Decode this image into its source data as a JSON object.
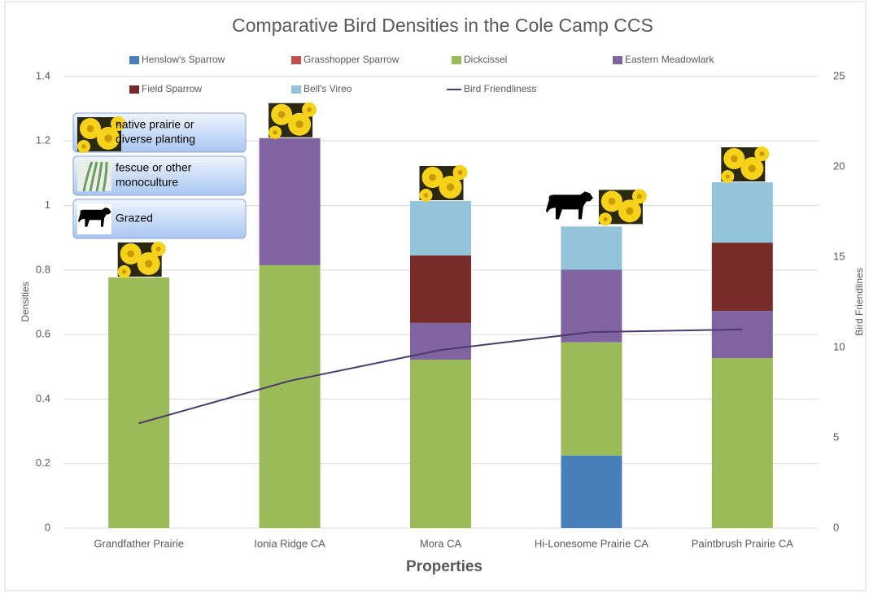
{
  "chart_data": {
    "type": "stacked-bar-line",
    "title": "Comparative Bird Densities in the Cole Camp CCS",
    "x_label": "Properties",
    "y_label": "Densities",
    "y2_label": "Bird Friendlines",
    "categories": [
      "Grandfather Prairie",
      "Ionia Ridge CA",
      "Mora CA",
      "Hi-Lonesome Prairie CA",
      "Paintbrush Prairie CA"
    ],
    "series": [
      {
        "name": "Henslow's Sparrow",
        "color": "#4a7ebb",
        "values": [
          0,
          0,
          0,
          0.225,
          0
        ]
      },
      {
        "name": "Grasshopper Sparrow",
        "color": "#c0504d",
        "values": [
          0,
          0,
          0,
          0,
          0
        ]
      },
      {
        "name": "Dickcissel",
        "color": "#9bbb59",
        "values": [
          0.777,
          0.815,
          0.522,
          0.351,
          0.527
        ]
      },
      {
        "name": "Eastern Meadowlark",
        "color": "#8064a2",
        "values": [
          0,
          0.394,
          0.114,
          0.225,
          0.146
        ]
      },
      {
        "name": "Field Sparrow",
        "color": "#772c2a",
        "values": [
          0,
          0,
          0.209,
          0,
          0.212
        ]
      },
      {
        "name": "Bell's Vireo",
        "color": "#93c4d9",
        "values": [
          0,
          0,
          0.169,
          0.134,
          0.187
        ]
      },
      {
        "name": "Bird Friendliness",
        "color": "#4b3a6b",
        "type": "line",
        "axis": "y2",
        "values": [
          5.8,
          8.15,
          9.86,
          10.85,
          11.0
        ]
      }
    ],
    "ylim": [
      0,
      1.4
    ],
    "yticks": [
      0,
      0.2,
      0.4,
      0.6,
      0.8,
      1,
      1.2,
      1.4
    ],
    "y2lim": [
      0,
      25
    ],
    "y2ticks": [
      0,
      5,
      10,
      15,
      20,
      25
    ],
    "grid": true,
    "annotations": [
      [
        "native prairie or",
        "diverse planting"
      ],
      [
        "fescue or other",
        "monoculture"
      ],
      [
        "Grazed"
      ]
    ]
  }
}
